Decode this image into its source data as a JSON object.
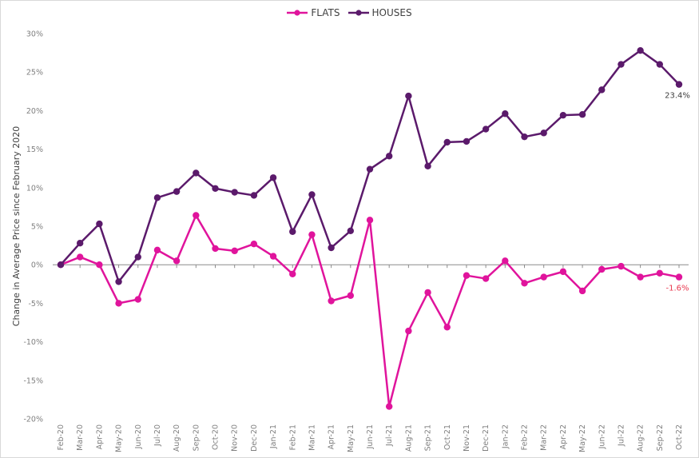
{
  "chart_data": {
    "type": "line",
    "title": "",
    "ylabel": "Change in Average Price since February 2020",
    "xlabel": "",
    "ylim": [
      -20,
      30
    ],
    "yticks": [
      30,
      25,
      20,
      15,
      10,
      5,
      0,
      -5,
      -10,
      -15,
      -20
    ],
    "ytick_labels": [
      "30%",
      "25%",
      "20%",
      "15%",
      "10%",
      "5%",
      "0%",
      "-5%",
      "-10%",
      "-15%",
      "-20%"
    ],
    "categories": [
      "Feb-20",
      "Mar-20",
      "Apr-20",
      "May-20",
      "Jun-20",
      "Jul-20",
      "Aug-20",
      "Sep-20",
      "Oct-20",
      "Nov-20",
      "Dec-20",
      "Jan-21",
      "Feb-21",
      "Mar-21",
      "Apr-21",
      "May-21",
      "Jun-21",
      "Jul-21",
      "Aug-21",
      "Sep-21",
      "Oct-21",
      "Nov-21",
      "Dec-21",
      "Jan-22",
      "Feb-22",
      "Mar-22",
      "Apr-22",
      "May-22",
      "Jun-22",
      "Jul-22",
      "Aug-22",
      "Sep-22",
      "Oct-22"
    ],
    "grid": false,
    "legend_position": "top-center",
    "series": [
      {
        "name": "FLATS",
        "color": "#e0149c",
        "values": [
          0,
          1.0,
          0,
          -5.0,
          -4.5,
          1.9,
          0.5,
          6.4,
          2.1,
          1.8,
          2.7,
          1.1,
          -1.2,
          3.9,
          -4.7,
          -4.0,
          5.8,
          -18.4,
          -8.6,
          -3.6,
          -8.1,
          -1.4,
          -1.8,
          0.5,
          -2.4,
          -1.6,
          -0.9,
          -3.4,
          -0.6,
          -0.2,
          -1.6,
          -1.1,
          -1.6
        ],
        "end_label": "-1.6%",
        "end_label_color": "#e8384f"
      },
      {
        "name": "HOUSES",
        "color": "#5b1a6b",
        "values": [
          0,
          2.8,
          5.3,
          -2.2,
          1.0,
          8.7,
          9.5,
          11.9,
          9.9,
          9.4,
          9.0,
          11.3,
          4.3,
          9.1,
          2.2,
          4.4,
          12.4,
          14.1,
          21.9,
          12.8,
          15.9,
          16.0,
          17.6,
          19.6,
          16.6,
          17.1,
          19.4,
          19.5,
          22.7,
          26.0,
          27.8,
          26.0,
          23.4
        ],
        "end_label": "23.4%",
        "end_label_color": "#404040"
      }
    ]
  }
}
